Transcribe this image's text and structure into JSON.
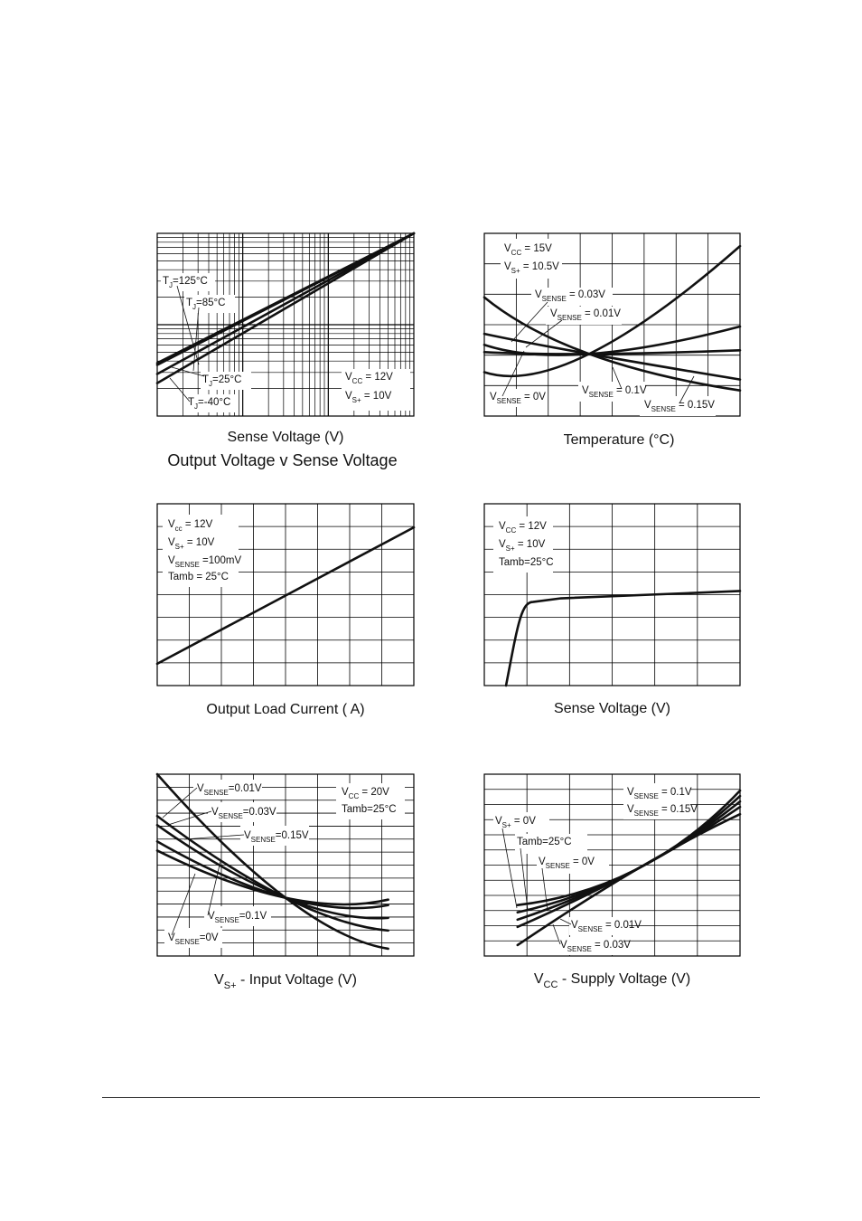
{
  "charts": [
    {
      "id": "c1",
      "xlabel": "Sense Voltage (V)",
      "caption": "Output Voltage v Sense Voltage",
      "chart_data": {
        "type": "line",
        "scale": "log-log",
        "annotations": [
          {
            "main": "T",
            "sub": "J",
            "tail": "=125°C"
          },
          {
            "main": "T",
            "sub": "J",
            "tail": "=85°C"
          },
          {
            "main": "T",
            "sub": "J",
            "tail": "=25°C"
          },
          {
            "main": "T",
            "sub": "J",
            "tail": "=-40°C"
          },
          {
            "main": "V",
            "sub": "CC",
            "tail": " = 12V"
          },
          {
            "main": "V",
            "sub": "S+",
            "tail": " = 10V"
          }
        ],
        "series": [
          {
            "x": [
              0,
              1
            ],
            "y": [
              0.29,
              1.0
            ]
          },
          {
            "x": [
              0,
              1
            ],
            "y": [
              0.28,
              1.0
            ]
          },
          {
            "x": [
              0,
              1
            ],
            "y": [
              0.23,
              1.0
            ]
          },
          {
            "x": [
              0,
              1
            ],
            "y": [
              0.18,
              1.0
            ]
          }
        ]
      }
    },
    {
      "id": "c2",
      "xlabel": "Temperature (°C)",
      "chart_data": {
        "type": "line",
        "annotations": [
          {
            "main": "V",
            "sub": "CC",
            "tail": " = 15V"
          },
          {
            "main": "V",
            "sub": "S+",
            "tail": " = 10.5V"
          },
          {
            "main": "V",
            "sub": "SENSE",
            "tail": " = 0.03V"
          },
          {
            "main": "V",
            "sub": "SENSE",
            "tail": " = 0.01V"
          },
          {
            "main": "V",
            "sub": "SENSE",
            "tail": " = 0V"
          },
          {
            "main": "V",
            "sub": "SENSE",
            "tail": " = 0.1V"
          },
          {
            "main": "V",
            "sub": "SENSE",
            "tail": " = 0.15V"
          }
        ],
        "series": [
          {
            "name": "V SENSE = 0V",
            "x": [
              0,
              0.41,
              1
            ],
            "y": [
              0.24,
              0.34,
              0.93
            ]
          },
          {
            "name": "V SENSE = 0.01V",
            "x": [
              0,
              0.41,
              1
            ],
            "y": [
              0.39,
              0.34,
              0.49
            ]
          },
          {
            "name": "V SENSE = 0.03V",
            "x": [
              0,
              0.41,
              1
            ],
            "y": [
              0.35,
              0.34,
              0.36
            ]
          },
          {
            "name": "V SENSE = 0.1V",
            "x": [
              0,
              0.41,
              1
            ],
            "y": [
              0.45,
              0.34,
              0.2
            ]
          },
          {
            "name": "V SENSE = 0.15V",
            "x": [
              0,
              0.41,
              1
            ],
            "y": [
              0.65,
              0.34,
              0.14
            ]
          }
        ]
      }
    },
    {
      "id": "c3",
      "xlabel": "Output Load Current (  A)",
      "chart_data": {
        "type": "line",
        "annotations": [
          {
            "main": "V",
            "sub": "cc",
            "tail": " = 12V"
          },
          {
            "main": "V",
            "sub": "S+",
            "tail": " = 10V"
          },
          {
            "main": "V",
            "sub": "SENSE",
            "tail": " =100mV"
          },
          {
            "main": "Tamb = 25°C",
            "sub": "",
            "tail": ""
          }
        ],
        "series": [
          {
            "x": [
              0,
              1
            ],
            "y": [
              0.12,
              0.87
            ]
          }
        ]
      }
    },
    {
      "id": "c4",
      "xlabel": "Sense Voltage (V)",
      "chart_data": {
        "type": "line",
        "annotations": [
          {
            "main": "V",
            "sub": "CC",
            "tail": " = 12V"
          },
          {
            "main": "V",
            "sub": "S+",
            "tail": " = 10V"
          },
          {
            "main": "Tamb=25°C",
            "sub": "",
            "tail": ""
          }
        ],
        "series": [
          {
            "x": [
              0.085,
              0.13,
              0.19,
              0.3,
              1
            ],
            "y": [
              0,
              0.33,
              0.46,
              0.48,
              0.52
            ]
          }
        ]
      }
    },
    {
      "id": "c5",
      "xlabel_main": "V",
      "xlabel_sub": "S+",
      "xlabel_tail": " - Input Voltage (V)",
      "chart_data": {
        "type": "line",
        "annotations": [
          {
            "main": "V",
            "sub": "SENSE",
            "tail": "=0.01V"
          },
          {
            "main": "V",
            "sub": "SENSE",
            "tail": "=0.03V"
          },
          {
            "main": "V",
            "sub": "SENSE",
            "tail": "=0.15V"
          },
          {
            "main": "V",
            "sub": "SENSE",
            "tail": "=0.1V"
          },
          {
            "main": "V",
            "sub": "SENSE",
            "tail": "=0V"
          },
          {
            "main": "V",
            "sub": "CC",
            "tail": " = 20V"
          },
          {
            "main": "Tamb=25°C",
            "sub": "",
            "tail": ""
          }
        ],
        "series": [
          {
            "name": "V SENSE =0V",
            "x": [
              0,
              0.5,
              0.9
            ],
            "y": [
              1,
              0.32,
              0.04
            ]
          },
          {
            "name": "V SENSE =0.01V",
            "x": [
              0,
              0.5,
              0.9
            ],
            "y": [
              0.77,
              0.32,
              0.14
            ]
          },
          {
            "name": "V SENSE =0.03V",
            "x": [
              0,
              0.5,
              0.9
            ],
            "y": [
              0.72,
              0.32,
              0.21
            ]
          },
          {
            "name": "V SENSE =0.1V",
            "x": [
              0,
              0.5,
              0.9
            ],
            "y": [
              0.63,
              0.32,
              0.28
            ]
          },
          {
            "name": "V SENSE =0.15V",
            "x": [
              0,
              0.5,
              0.9
            ],
            "y": [
              0.58,
              0.32,
              0.31
            ]
          }
        ]
      }
    },
    {
      "id": "c6",
      "xlabel_main": "V",
      "xlabel_sub": "CC",
      "xlabel_tail": " - Supply Voltage (V)",
      "chart_data": {
        "type": "line",
        "annotations": [
          {
            "main": "V",
            "sub": "S+",
            "tail": " = 0V"
          },
          {
            "main": "Tamb=25°C",
            "sub": "",
            "tail": ""
          },
          {
            "main": "V",
            "sub": "SENSE",
            "tail": " = 0V"
          },
          {
            "main": "V",
            "sub": "SENSE",
            "tail": " = 0.01V"
          },
          {
            "main": "V",
            "sub": "SENSE",
            "tail": " = 0.03V"
          },
          {
            "main": "V",
            "sub": "SENSE",
            "tail": " = 0.1V"
          },
          {
            "main": "V",
            "sub": "SENSE",
            "tail": " = 0.15V"
          }
        ],
        "series": [
          {
            "name": "V SENSE = 0V",
            "x": [
              0.13,
              0.6,
              1
            ],
            "y": [
              0.28,
              0.48,
              0.91
            ]
          },
          {
            "name": "V SENSE = 0.01V",
            "x": [
              0.13,
              0.6,
              1
            ],
            "y": [
              0.24,
              0.48,
              0.88
            ]
          },
          {
            "name": "V SENSE = 0.03V",
            "x": [
              0.13,
              0.6,
              1
            ],
            "y": [
              0.2,
              0.48,
              0.85
            ]
          },
          {
            "name": "V SENSE = 0.1V",
            "x": [
              0.13,
              0.6,
              1
            ],
            "y": [
              0.16,
              0.48,
              0.82
            ]
          },
          {
            "name": "V SENSE = 0.15V",
            "x": [
              0.13,
              0.6,
              1
            ],
            "y": [
              0.06,
              0.48,
              0.78
            ]
          }
        ]
      }
    }
  ]
}
